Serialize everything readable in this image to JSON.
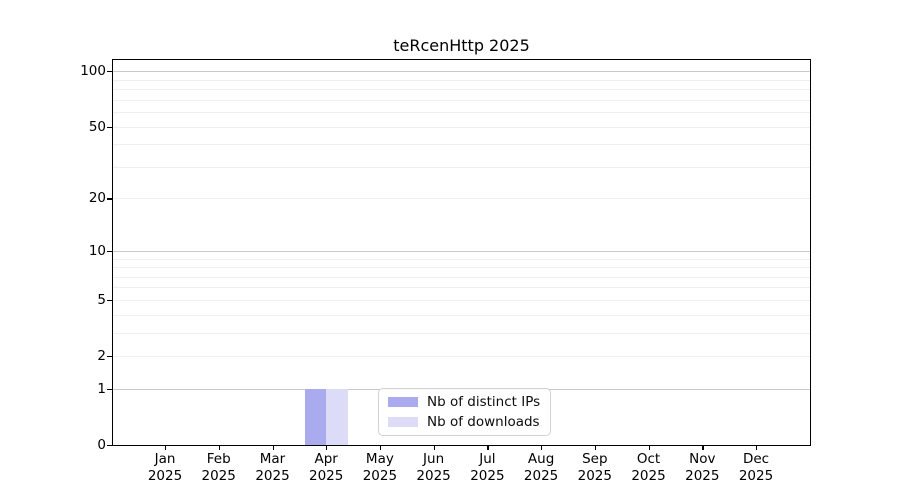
{
  "chart_data": {
    "type": "bar",
    "title": "teRcenHttp 2025",
    "year": "2025",
    "categories": [
      "Jan",
      "Feb",
      "Mar",
      "Apr",
      "May",
      "Jun",
      "Jul",
      "Aug",
      "Sep",
      "Oct",
      "Nov",
      "Dec"
    ],
    "series": [
      {
        "name": "Nb of distinct IPs",
        "color": "#aaaaef",
        "values": [
          0,
          0,
          0,
          1,
          0,
          0,
          0,
          0,
          0,
          0,
          0,
          0
        ]
      },
      {
        "name": "Nb of downloads",
        "color": "#dcdcf8",
        "values": [
          0,
          0,
          0,
          1,
          0,
          0,
          0,
          0,
          0,
          0,
          0,
          0
        ]
      }
    ],
    "y_scale": "log1p",
    "ylim": [
      0,
      115
    ],
    "y_ticks": [
      0,
      1,
      2,
      5,
      10,
      20,
      50,
      100
    ],
    "y_major_gridlines": [
      1,
      10,
      100
    ],
    "y_minor_gridlines": [
      2,
      3,
      4,
      5,
      6,
      7,
      8,
      9,
      20,
      30,
      40,
      50,
      60,
      70,
      80,
      90
    ],
    "legend": {
      "position": "lower center",
      "items": [
        "Nb of distinct IPs",
        "Nb of downloads"
      ]
    }
  }
}
